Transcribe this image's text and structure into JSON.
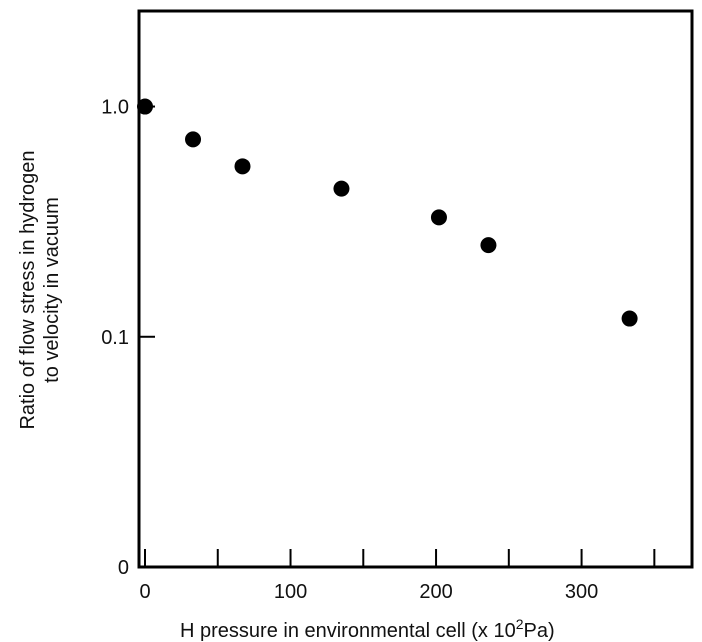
{
  "chart_data": {
    "type": "scatter",
    "title": "",
    "xlabel": "H  pressure in environmental cell (x 10",
    "xlabel_superscript": "2",
    "xlabel_suffix": "Pa)",
    "ylabel_line1": "Ratio of flow stress in hydrogen",
    "ylabel_line2": "to velocity in vacuum",
    "x_ticks": [
      {
        "value": 0,
        "label": "0"
      },
      {
        "value": 100,
        "label": "100"
      },
      {
        "value": 200,
        "label": "200"
      },
      {
        "value": 300,
        "label": "300"
      }
    ],
    "x_minor_ticks": [
      50,
      150,
      250,
      350
    ],
    "y_ticks": [
      {
        "value": 1.0,
        "label": "1.0"
      },
      {
        "value": 0.1,
        "label": "0.1"
      },
      {
        "value": 0.01,
        "label": "0"
      }
    ],
    "xlim": [
      0,
      380
    ],
    "ylim_log": [
      0.01,
      2.6
    ],
    "y_scale": "log",
    "grid": false,
    "marker_color": "#000000",
    "points": [
      {
        "x": 0,
        "y": 1.0
      },
      {
        "x": 33,
        "y": 0.72
      },
      {
        "x": 67,
        "y": 0.55
      },
      {
        "x": 135,
        "y": 0.44
      },
      {
        "x": 202,
        "y": 0.33
      },
      {
        "x": 236,
        "y": 0.25
      },
      {
        "x": 333,
        "y": 0.12
      }
    ]
  }
}
